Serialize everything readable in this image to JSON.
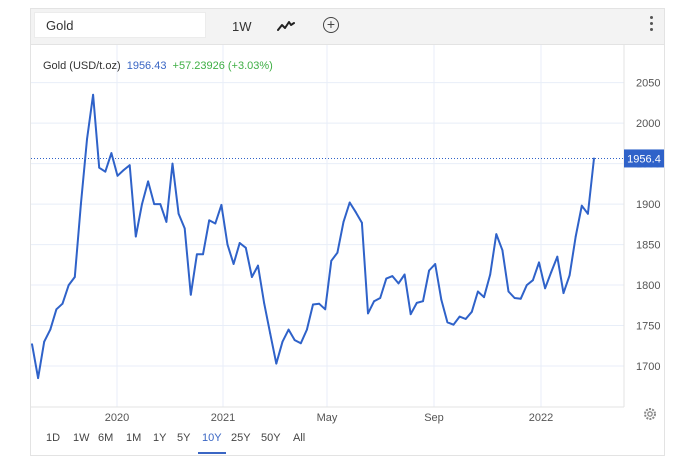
{
  "toolbar": {
    "symbol_value": "Gold",
    "interval_label": "1W",
    "line_type_icon": "line-chart-icon",
    "compare_symbol": "+",
    "menu_icon": "kebab-menu-icon"
  },
  "legend": {
    "name": "Gold (USD/t.oz)",
    "price": "1956.43",
    "change": "+57.23926 (+3.03%)"
  },
  "colors": {
    "line": "#2f62c9",
    "price_tag": "#2f62c9",
    "change_positive": "#3faf45",
    "grid": "#e8eef8"
  },
  "chart_data": {
    "type": "line",
    "title": "",
    "xlabel": "",
    "ylabel": "",
    "x_ticks": [
      "2020",
      "2021",
      "May",
      "Sep",
      "2022"
    ],
    "y_ticks": [
      1700,
      1750,
      1800,
      1850,
      1900,
      1950,
      2000,
      2050
    ],
    "ylim": [
      1650,
      2090
    ],
    "grid": true,
    "last_price_label": "1956.4",
    "last_price": 1956.4,
    "series": [
      {
        "values": [
          1727,
          1685,
          1730,
          1745,
          1770,
          1777,
          1800,
          1810,
          1900,
          1980,
          2035,
          1945,
          1940,
          1963,
          1935,
          1942,
          1948,
          1860,
          1900,
          1928,
          1900,
          1900,
          1878,
          1950,
          1888,
          1870,
          1788,
          1838,
          1838,
          1880,
          1876,
          1899,
          1850,
          1826,
          1852,
          1846,
          1810,
          1824,
          1778,
          1740,
          1703,
          1730,
          1745,
          1732,
          1728,
          1745,
          1776,
          1777,
          1770,
          1830,
          1840,
          1878,
          1902,
          1890,
          1877,
          1765,
          1780,
          1784,
          1808,
          1811,
          1802,
          1813,
          1764,
          1778,
          1780,
          1818,
          1826,
          1782,
          1754,
          1751,
          1761,
          1758,
          1767,
          1792,
          1785,
          1813,
          1863,
          1843,
          1792,
          1784,
          1783,
          1800,
          1806,
          1828,
          1796,
          1816,
          1835,
          1790,
          1812,
          1860,
          1898,
          1888,
          1956.4
        ]
      }
    ]
  },
  "ranges": [
    "1D",
    "1W",
    "6M",
    "1M",
    "1Y",
    "5Y",
    "10Y",
    "25Y",
    "50Y",
    "All"
  ],
  "active_range": "10Y"
}
